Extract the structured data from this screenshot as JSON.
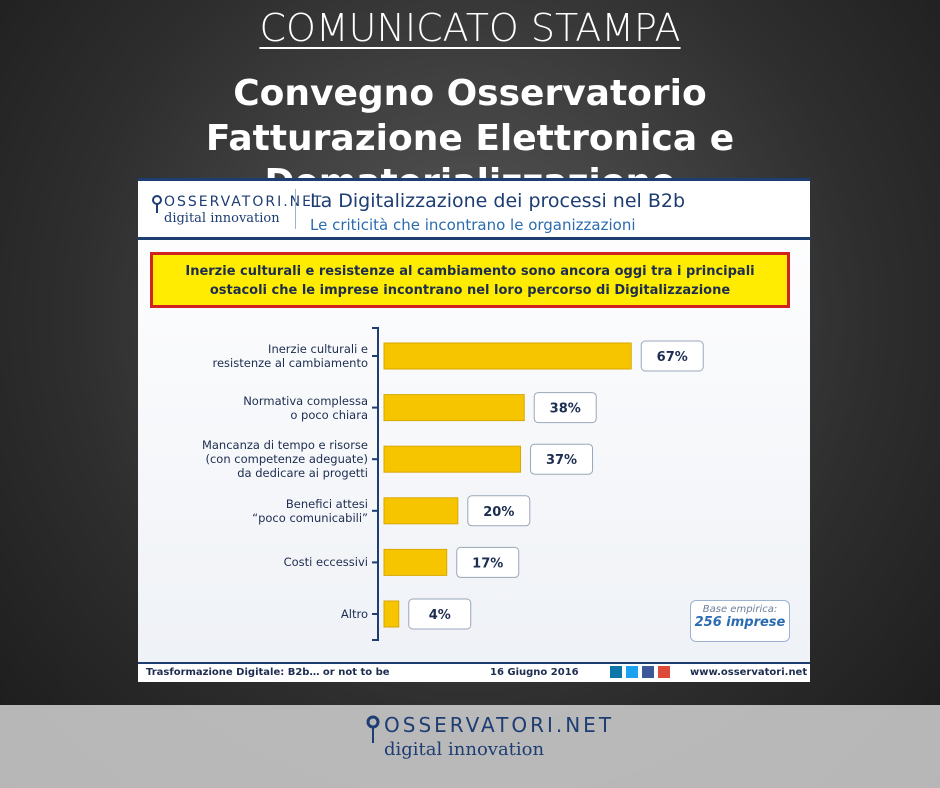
{
  "header": {
    "kicker": "COMUNICATO STAMPA",
    "title_lines": [
      "Convegno Osservatorio",
      "Fatturazione Elettronica e Dematerializzazione"
    ]
  },
  "slide": {
    "logo": {
      "brand": "OSSERVATORI.NET",
      "tagline": "digital innovation"
    },
    "title": "La Digitalizzazione dei processi nel B2b",
    "subtitle": "Le criticità che incontrano le organizzazioni",
    "callout": "Inerzie culturali e resistenze al cambiamento sono ancora oggi tra i principali\nostacoli che le imprese incontrano nel loro percorso di Digitalizzazione",
    "base_label": "Base empirica:",
    "base_value": "256 imprese",
    "footer": {
      "event": "Trasformazione Digitale: B2b… or not to be",
      "date": "16 Giugno 2016",
      "url": "www.osservatori.net"
    }
  },
  "chart_data": {
    "type": "hbar",
    "color": "#f6c500",
    "categories": [
      "Inerzie culturali e\nresistenze al cambiamento",
      "Normativa complessa\no poco chiara",
      "Mancanza di tempo e risorse\n(con competenze adeguate)\nda dedicare ai progetti",
      "Benefici attesi\n“poco comunicabili”",
      "Costi eccessivi",
      "Altro"
    ],
    "values": [
      67,
      38,
      37,
      20,
      17,
      4
    ],
    "value_labels": [
      "67%",
      "38%",
      "37%",
      "20%",
      "17%",
      "4%"
    ]
  },
  "bottom_logo": {
    "brand": "OSSERVATORI.NET",
    "tagline": "digital innovation"
  }
}
